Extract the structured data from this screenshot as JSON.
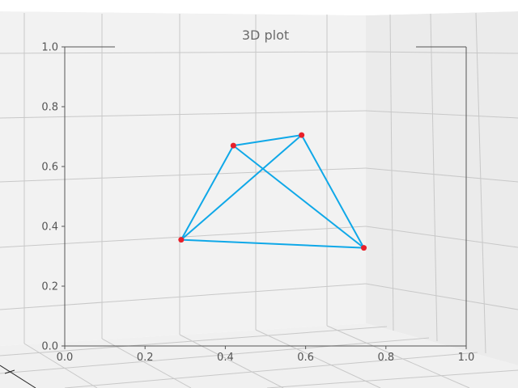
{
  "chart_data": {
    "type": "line",
    "title": "3D plot",
    "projection": "3d",
    "xlabel": "",
    "ylabel": "",
    "xlim": [
      0,
      1
    ],
    "ylim": [
      0,
      1
    ],
    "grid": true,
    "x_ticks": [
      "0.0",
      "0.2",
      "0.4",
      "0.6",
      "0.8",
      "1.0"
    ],
    "y_ticks": [
      "0.0",
      "0.2",
      "0.4",
      "0.6",
      "0.8",
      "1.0"
    ],
    "line_color": "#0fa8e8",
    "marker_color": "#e8202a",
    "points": [
      {
        "x": 0.29,
        "y": 0.355
      },
      {
        "x": 0.42,
        "y": 0.67
      },
      {
        "x": 0.59,
        "y": 0.705
      },
      {
        "x": 0.745,
        "y": 0.328
      }
    ],
    "edges": [
      [
        0,
        1
      ],
      [
        1,
        2
      ],
      [
        2,
        3
      ],
      [
        3,
        0
      ],
      [
        0,
        2
      ],
      [
        1,
        3
      ]
    ]
  }
}
